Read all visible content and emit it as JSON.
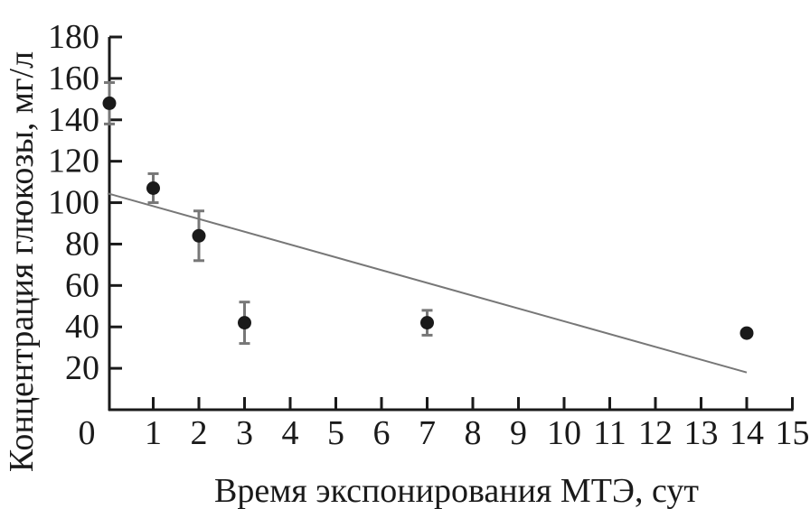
{
  "chart_data": {
    "type": "scatter",
    "title": "",
    "xlabel": "Время экспонирования МТЭ, сут",
    "ylabel": "Концентрация глюкозы, мг/л",
    "xlim": [
      0,
      15
    ],
    "ylim": [
      0,
      180
    ],
    "xticks": [
      0,
      1,
      2,
      3,
      4,
      5,
      6,
      7,
      8,
      9,
      10,
      11,
      12,
      13,
      14,
      15
    ],
    "yticks": [
      20,
      40,
      60,
      80,
      100,
      120,
      140,
      160,
      180
    ],
    "grid": false,
    "legend": "none",
    "points": [
      {
        "x": 0,
        "y": 148,
        "err": 10
      },
      {
        "x": 1,
        "y": 107,
        "err": 7
      },
      {
        "x": 2,
        "y": 84,
        "err": 12
      },
      {
        "x": 3,
        "y": 42,
        "err": 10
      },
      {
        "x": 7,
        "y": 42,
        "err": 6
      },
      {
        "x": 14,
        "y": 37,
        "err": 0
      }
    ],
    "trendline": {
      "x": [
        0,
        14
      ],
      "y": [
        104.5,
        18
      ]
    },
    "colors": {
      "points": "#1a1a1a",
      "errorbars": "#777777",
      "trendline": "#777777",
      "axes": "#1a1a1a"
    }
  }
}
